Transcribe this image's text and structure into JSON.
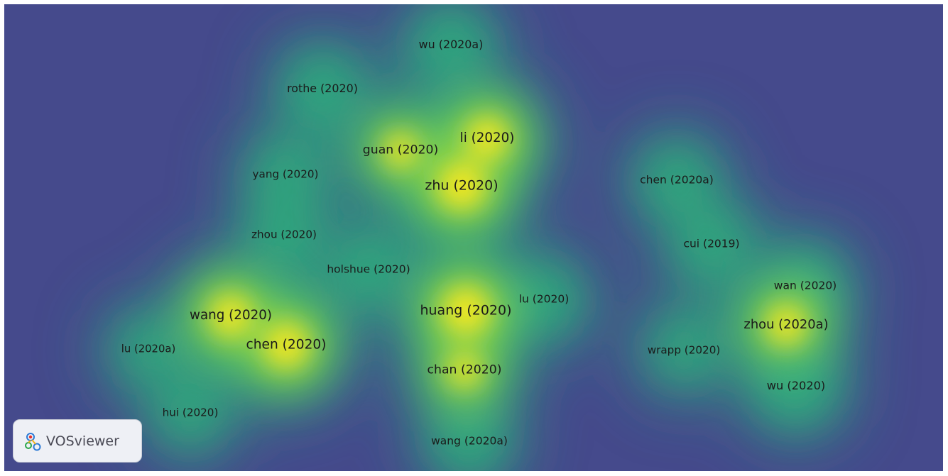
{
  "app": {
    "logo_text": "VOSviewer"
  },
  "colors": {
    "background": "#454a8c",
    "hot": "#f4e721",
    "mid": "#2fa67c",
    "low": "#3b528b"
  },
  "density_map": {
    "nodes": [
      {
        "label": "wu (2020a)",
        "weight": 0.55
      },
      {
        "label": "rothe (2020)",
        "weight": 0.55
      },
      {
        "label": "li (2020)",
        "weight": 0.9
      },
      {
        "label": "guan (2020)",
        "weight": 0.75
      },
      {
        "label": "zhu (2020)",
        "weight": 1.0
      },
      {
        "label": "yang (2020)",
        "weight": 0.45
      },
      {
        "label": "zhou (2020)",
        "weight": 0.45
      },
      {
        "label": "holshue (2020)",
        "weight": 0.5
      },
      {
        "label": "wang (2020)",
        "weight": 0.9
      },
      {
        "label": "chen (2020)",
        "weight": 0.95
      },
      {
        "label": "lu (2020a)",
        "weight": 0.4
      },
      {
        "label": "hui (2020)",
        "weight": 0.45
      },
      {
        "label": "huang (2020)",
        "weight": 1.0
      },
      {
        "label": "lu (2020)",
        "weight": 0.5
      },
      {
        "label": "chan (2020)",
        "weight": 0.75
      },
      {
        "label": "wang (2020a)",
        "weight": 0.5
      },
      {
        "label": "chen (2020a)",
        "weight": 0.5
      },
      {
        "label": "cui (2019)",
        "weight": 0.5
      },
      {
        "label": "wan (2020)",
        "weight": 0.5
      },
      {
        "label": "zhou (2020a)",
        "weight": 0.85
      },
      {
        "label": "wrapp (2020)",
        "weight": 0.45
      },
      {
        "label": "wu (2020)",
        "weight": 0.6
      }
    ]
  }
}
